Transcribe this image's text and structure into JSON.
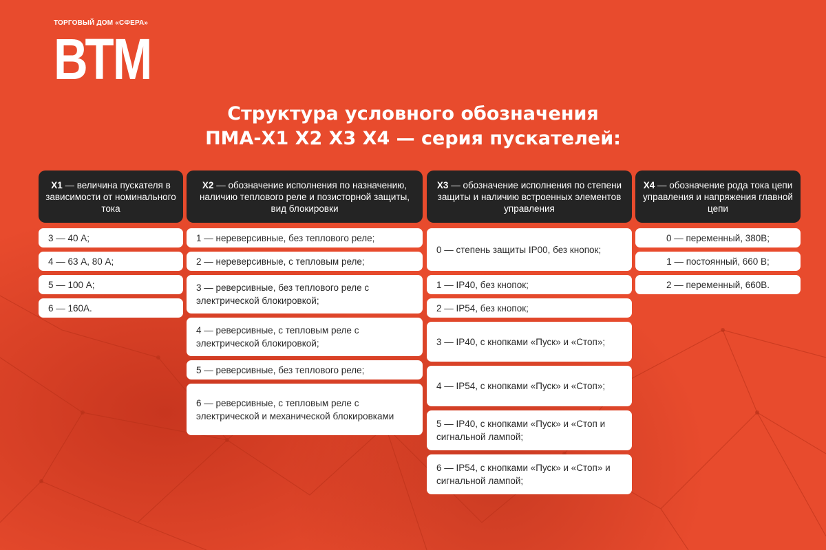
{
  "logo": {
    "subtitle": "ТОРГОВЫЙ ДОМ «СФЕРА»",
    "name": "ВТМ"
  },
  "title": {
    "line1": "Структура условного обозначения",
    "line2": "ПМА-Х1 Х2 Х3 Х4 — серия пускателей:"
  },
  "columns": [
    {
      "code": "Х1",
      "desc": " — величина пускателя в зависимости от номинального тока",
      "items": [
        "3 — 40 А;",
        "4 — 63 А, 80 А;",
        "5 — 100 А;",
        "6 — 160А."
      ]
    },
    {
      "code": "Х2",
      "desc": " — обозначение исполнения по назначению, наличию теплового реле и позисторной защиты, вид блокировки",
      "items": [
        "1 — нереверсивные, без теплового реле;",
        "2 — нереверсивные, с тепловым реле;",
        "3 — реверсивные, без теплового реле с электрической блокировкой;",
        "4 — реверсивные, с тепловым реле с электрической блокировкой;",
        "5 — реверсивные, без теплового реле;",
        "6 — реверсивные, с тепловым реле с электрической и механической блокировками"
      ]
    },
    {
      "code": "Х3",
      "desc": " — обозначение исполнения по степени защиты и наличию встроенных элементов управления",
      "items": [
        "0 — степень защиты IP00, без кнопок;",
        "1 — IP40, без кнопок;",
        "2 — IP54, без кнопок;",
        "3 — IP40, с кнопками «Пуск» и «Стоп»;",
        "4 — IP54, с кнопками «Пуск» и «Стоп»;",
        "5 — IP40, с кнопками «Пуск» и «Стоп и сигнальной лампой;",
        "6 — IP54, с кнопками «Пуск» и «Стоп» и сигнальной лампой;"
      ]
    },
    {
      "code": "Х4",
      "desc": " — обозначение рода тока цепи управления и напряжения главной цепи",
      "items": [
        "0 — переменный, 380В;",
        "1 — постоянный, 660 В;",
        "2 — переменный, 660В."
      ]
    }
  ],
  "colors": {
    "background": "#e84b2d",
    "header": "#242424",
    "cell": "#ffffff"
  }
}
